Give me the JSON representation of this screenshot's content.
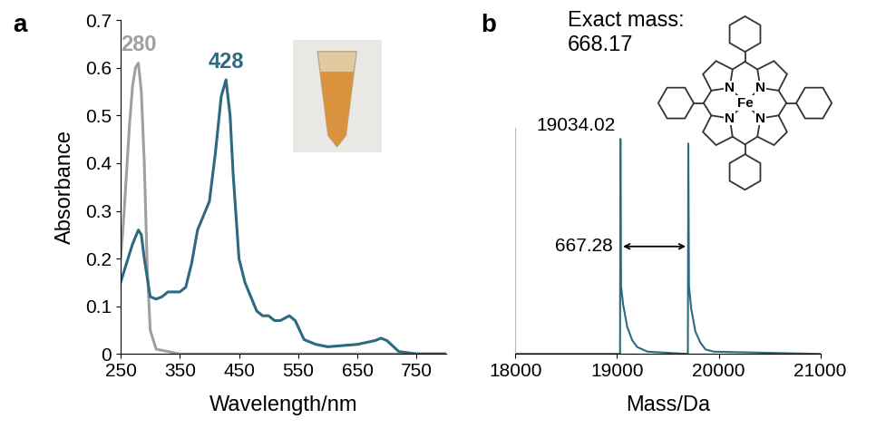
{
  "chart_data": [
    {
      "panel": "a",
      "type": "line",
      "x_label": "Wavelength/nm",
      "y_label": "Absorbance",
      "xlim": [
        250,
        800
      ],
      "xticks": [
        250,
        350,
        450,
        550,
        650,
        750
      ],
      "ylim": [
        0,
        0.7
      ],
      "yticks": [
        0,
        0.1,
        0.2,
        0.3,
        0.4,
        0.5,
        0.6,
        0.7
      ],
      "series": [
        {
          "color": "#a0a0a0",
          "x": [
            250,
            255,
            260,
            265,
            270,
            275,
            280,
            285,
            290,
            295,
            300,
            310,
            350,
            800
          ],
          "values": [
            0.2,
            0.28,
            0.38,
            0.48,
            0.56,
            0.6,
            0.61,
            0.55,
            0.4,
            0.18,
            0.05,
            0.01,
            0,
            0
          ]
        },
        {
          "color": "#2d6a80",
          "x": [
            250,
            260,
            270,
            280,
            285,
            290,
            300,
            310,
            320,
            330,
            350,
            360,
            370,
            380,
            390,
            400,
            410,
            420,
            428,
            435,
            440,
            450,
            460,
            470,
            480,
            490,
            500,
            510,
            520,
            535,
            545,
            560,
            580,
            600,
            650,
            680,
            690,
            700,
            720,
            750,
            800
          ],
          "values": [
            0.15,
            0.19,
            0.23,
            0.26,
            0.25,
            0.2,
            0.12,
            0.115,
            0.12,
            0.13,
            0.13,
            0.14,
            0.19,
            0.26,
            0.29,
            0.32,
            0.42,
            0.54,
            0.575,
            0.5,
            0.38,
            0.2,
            0.15,
            0.12,
            0.09,
            0.08,
            0.08,
            0.07,
            0.07,
            0.08,
            0.07,
            0.03,
            0.02,
            0.015,
            0.02,
            0.028,
            0.033,
            0.028,
            0.005,
            0,
            0
          ]
        }
      ],
      "annotations": [
        {
          "text": "280",
          "x": 280,
          "color": "#a0a0a0"
        },
        {
          "text": "428",
          "x": 428,
          "color": "#2d6a80"
        }
      ]
    },
    {
      "panel": "b",
      "type": "line",
      "x_label": "Mass/Da",
      "xlim": [
        18000,
        21000
      ],
      "xticks": [
        18000,
        19000,
        20000,
        21000
      ],
      "ylim": [
        0,
        1
      ],
      "tick_labels": "x",
      "series": [
        {
          "color": "#2d6a80",
          "x": [
            18000,
            19030,
            19034.02,
            19040,
            19060,
            19100,
            19150,
            19200,
            19300,
            19697,
            19701.3,
            19708,
            19730,
            19770,
            19820,
            19870,
            19950,
            21000
          ],
          "values": [
            0,
            0,
            0.95,
            0.3,
            0.22,
            0.12,
            0.06,
            0.03,
            0.01,
            0,
            0.93,
            0.3,
            0.2,
            0.1,
            0.05,
            0.02,
            0.01,
            0
          ]
        }
      ],
      "annotations": [
        {
          "text": "19034.02",
          "x": 19034.02
        },
        {
          "text": "667.28",
          "x_from": 19034.02,
          "x_to": 19701.3
        }
      ],
      "structure": {
        "label": "Exact mass:",
        "mass": "668.17",
        "donor": "N",
        "metal": "Fe"
      }
    }
  ]
}
